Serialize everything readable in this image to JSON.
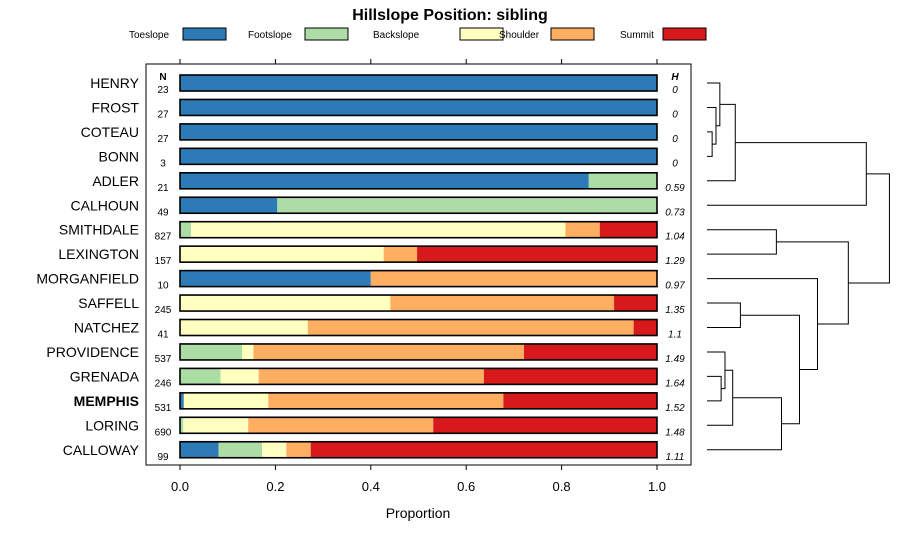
{
  "chart_data": {
    "type": "bar",
    "orientation": "horizontal-stacked",
    "title": "Hillslope Position: sibling",
    "xlabel": "Proportion",
    "xlim": [
      0,
      1
    ],
    "xticks": [
      "0.0",
      "0.2",
      "0.4",
      "0.6",
      "0.8",
      "1.0"
    ],
    "n_header": "N",
    "h_header": "H",
    "legend": [
      {
        "name": "Toeslope",
        "color": "#2c7bb6"
      },
      {
        "name": "Footslope",
        "color": "#abdda4"
      },
      {
        "name": "Backslope",
        "color": "#ffffbf"
      },
      {
        "name": "Shoulder",
        "color": "#fdae61"
      },
      {
        "name": "Summit",
        "color": "#d7191c"
      }
    ],
    "rows": [
      {
        "label": "HENRY",
        "n": "23",
        "h": "0",
        "bold": false,
        "values": [
          1.0,
          0,
          0,
          0,
          0
        ]
      },
      {
        "label": "FROST",
        "n": "27",
        "h": "0",
        "bold": false,
        "values": [
          1.0,
          0,
          0,
          0,
          0
        ]
      },
      {
        "label": "COTEAU",
        "n": "27",
        "h": "0",
        "bold": false,
        "values": [
          1.0,
          0,
          0,
          0,
          0
        ]
      },
      {
        "label": "BONN",
        "n": "3",
        "h": "0",
        "bold": false,
        "values": [
          1.0,
          0,
          0,
          0,
          0
        ]
      },
      {
        "label": "ADLER",
        "n": "21",
        "h": "0.59",
        "bold": false,
        "values": [
          0.857,
          0.143,
          0,
          0,
          0
        ]
      },
      {
        "label": "CALHOUN",
        "n": "49",
        "h": "0.73",
        "bold": false,
        "values": [
          0.204,
          0.796,
          0,
          0,
          0
        ]
      },
      {
        "label": "SMITHDALE",
        "n": "827",
        "h": "1.04",
        "bold": false,
        "values": [
          0,
          0.023,
          0.785,
          0.072,
          0.12
        ]
      },
      {
        "label": "LEXINGTON",
        "n": "157",
        "h": "1.29",
        "bold": false,
        "values": [
          0,
          0,
          0.427,
          0.07,
          0.503
        ]
      },
      {
        "label": "MORGANFIELD",
        "n": "10",
        "h": "0.97",
        "bold": false,
        "values": [
          0.4,
          0,
          0,
          0.6,
          0
        ]
      },
      {
        "label": "SAFFELL",
        "n": "245",
        "h": "1.35",
        "bold": false,
        "values": [
          0,
          0,
          0.441,
          0.469,
          0.09
        ]
      },
      {
        "label": "NATCHEZ",
        "n": "41",
        "h": "1.1",
        "bold": false,
        "values": [
          0,
          0,
          0.268,
          0.683,
          0.049
        ]
      },
      {
        "label": "PROVIDENCE",
        "n": "537",
        "h": "1.49",
        "bold": false,
        "values": [
          0,
          0.13,
          0.024,
          0.567,
          0.279
        ]
      },
      {
        "label": "GRENADA",
        "n": "246",
        "h": "1.64",
        "bold": false,
        "values": [
          0,
          0.085,
          0.08,
          0.472,
          0.363
        ]
      },
      {
        "label": "MEMPHIS",
        "n": "531",
        "h": "1.52",
        "bold": true,
        "values": [
          0.008,
          0,
          0.177,
          0.493,
          0.322
        ]
      },
      {
        "label": "LORING",
        "n": "690",
        "h": "1.48",
        "bold": false,
        "values": [
          0,
          0.007,
          0.136,
          0.388,
          0.469
        ]
      },
      {
        "label": "CALLOWAY",
        "n": "99",
        "h": "1.11",
        "bold": false,
        "values": [
          0.081,
          0.091,
          0.051,
          0.051,
          0.726
        ]
      }
    ],
    "dendrogram": {
      "description": "hierarchical clustering of row labels (leaf indices 0-15 in row order)",
      "merges": [
        [
          [
            2
          ],
          [
            3
          ],
          0.02
        ],
        [
          [
            1
          ],
          [
            2,
            3
          ],
          0.035
        ],
        [
          [
            0
          ],
          [
            1,
            2,
            3
          ],
          0.05
        ],
        [
          [
            0,
            1,
            2,
            3
          ],
          [
            4
          ],
          0.11
        ],
        [
          [
            0,
            1,
            2,
            3,
            4
          ],
          [
            5
          ],
          0.62
        ],
        [
          [
            6
          ],
          [
            7
          ],
          0.27
        ],
        [
          [
            9
          ],
          [
            10
          ],
          0.13
        ],
        [
          [
            12
          ],
          [
            13
          ],
          0.055
        ],
        [
          [
            11
          ],
          [
            12,
            13
          ],
          0.07
        ],
        [
          [
            11,
            12,
            13
          ],
          [
            14
          ],
          0.1
        ],
        [
          [
            11,
            12,
            13,
            14
          ],
          [
            15
          ],
          0.29
        ],
        [
          [
            9,
            10
          ],
          [
            11,
            12,
            13,
            14,
            15
          ],
          0.36
        ],
        [
          [
            8
          ],
          [
            9,
            10,
            11,
            12,
            13,
            14,
            15
          ],
          0.43
        ],
        [
          [
            6,
            7
          ],
          [
            8,
            9,
            10,
            11,
            12,
            13,
            14,
            15
          ],
          0.55
        ],
        [
          [
            0,
            1,
            2,
            3,
            4,
            5
          ],
          [
            6,
            7,
            8,
            9,
            10,
            11,
            12,
            13,
            14,
            15
          ],
          0.71
        ]
      ]
    }
  }
}
